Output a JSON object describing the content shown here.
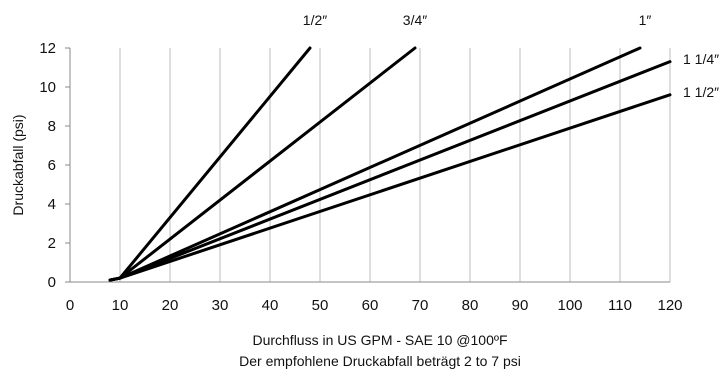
{
  "chart_data": {
    "type": "line",
    "xlabel": "Durchfluss in US GPM - SAE 10 @100ºF",
    "subtitle": "Der empfohlene Druckabfall beträgt 2 to 7 psi",
    "ylabel": "Druckabfall (psi)",
    "xlim": [
      0,
      120
    ],
    "ylim": [
      0,
      12
    ],
    "x_ticks": [
      "0",
      "10",
      "20",
      "30",
      "40",
      "50",
      "60",
      "70",
      "80",
      "90",
      "100",
      "110",
      "120"
    ],
    "y_ticks": [
      "0",
      "2",
      "4",
      "6",
      "8",
      "10",
      "12"
    ],
    "grid": "vertical",
    "series": [
      {
        "name": "1/2″",
        "x": [
          8,
          10,
          48
        ],
        "y": [
          0.1,
          0.2,
          12
        ]
      },
      {
        "name": "3/4″",
        "x": [
          8,
          10,
          69
        ],
        "y": [
          0.1,
          0.2,
          12
        ]
      },
      {
        "name": "1″",
        "x": [
          8,
          10,
          114
        ],
        "y": [
          0.1,
          0.2,
          12
        ]
      },
      {
        "name": "1 1/4″",
        "x": [
          8,
          10,
          120
        ],
        "y": [
          0.1,
          0.2,
          11.3
        ]
      },
      {
        "name": "1 1/2″",
        "x": [
          8,
          10,
          120
        ],
        "y": [
          0.1,
          0.2,
          9.6
        ]
      }
    ]
  }
}
